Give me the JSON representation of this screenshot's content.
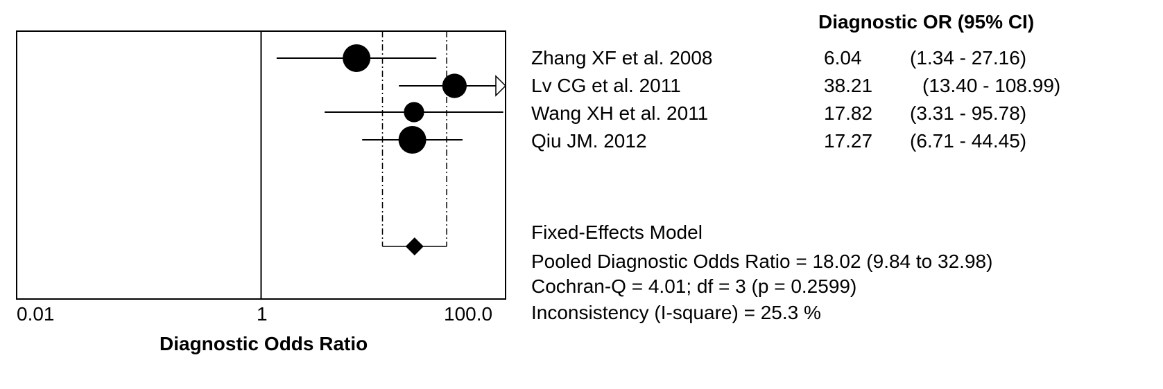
{
  "chart_data": {
    "type": "forest",
    "title": "",
    "column_header": "Diagnostic OR (95% CI)",
    "xlabel": "Diagnostic Odds Ratio",
    "x_scale": "log",
    "xlim": [
      0.01,
      100.0
    ],
    "x_ticks": [
      "0.01",
      "1",
      "100.0"
    ],
    "studies": [
      {
        "label": "Zhang XF et al. 2008",
        "or": 6.04,
        "lower": 1.34,
        "upper": 27.16,
        "or_text": "6.04",
        "ci_text": "(1.34 - 27.16)",
        "weight": 1.0,
        "truncated_upper": false
      },
      {
        "label": "Lv CG et al. 2011",
        "or": 38.21,
        "lower": 13.4,
        "upper": 108.99,
        "or_text": "38.21",
        "ci_text": "(13.40 - 108.99)",
        "weight": 0.8,
        "truncated_upper": true
      },
      {
        "label": "Wang XH et al. 2011",
        "or": 17.82,
        "lower": 3.31,
        "upper": 95.78,
        "or_text": "17.82",
        "ci_text": "(3.31 - 95.78)",
        "weight": 0.55,
        "truncated_upper": false
      },
      {
        "label": "Qiu JM. 2012",
        "or": 17.27,
        "lower": 6.71,
        "upper": 44.45,
        "or_text": "17.27",
        "ci_text": "(6.71 - 44.45)",
        "weight": 1.0,
        "truncated_upper": false
      }
    ],
    "pooled": {
      "or": 18.02,
      "lower": 9.84,
      "upper": 32.98
    },
    "model_summary": [
      "Fixed-Effects Model",
      "Pooled Diagnostic Odds Ratio = 18.02 (9.84 to 32.98)",
      "Cochran-Q = 4.01; df =  3 (p = 0.2599)",
      "Inconsistency (I-square) = 25.3 %"
    ]
  }
}
